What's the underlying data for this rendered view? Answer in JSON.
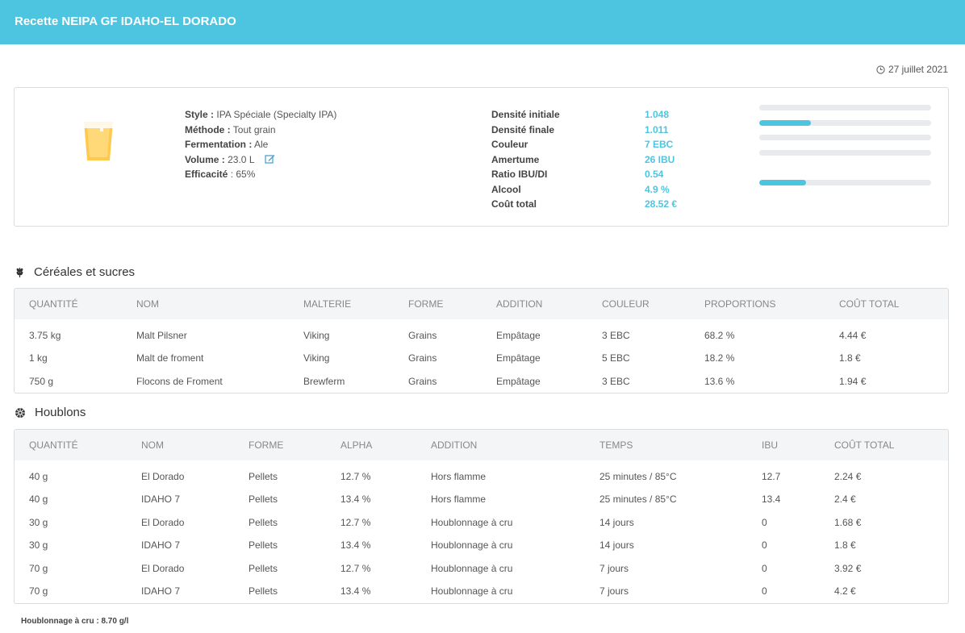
{
  "header": {
    "title": "Recette NEIPA GF IDAHO-EL DORADO"
  },
  "date": "27 juillet 2021",
  "specs": [
    {
      "label": "Style :",
      "value": "IPA Spéciale (Specialty IPA)"
    },
    {
      "label": "Méthode :",
      "value": "Tout grain"
    },
    {
      "label": "Fermentation :",
      "value": "Ale"
    },
    {
      "label": "Volume :",
      "value": "23.0 L"
    },
    {
      "label": "Efficacité",
      "value": ": 65%"
    }
  ],
  "stats": [
    {
      "label": "Densité initiale",
      "value": "1.048",
      "level": 0
    },
    {
      "label": "Densité finale",
      "value": "1.011",
      "level": 0.3
    },
    {
      "label": "Couleur",
      "value": "7 EBC",
      "level": 0
    },
    {
      "label": "Amertume",
      "value": "26 IBU",
      "level": 0
    },
    {
      "label": "Ratio IBU/DI",
      "value": "0.54",
      "level": null
    },
    {
      "label": "Alcool",
      "value": "4.9 %",
      "level": 0.27
    },
    {
      "label": "Coût total",
      "value": "28.52 €",
      "level": null
    }
  ],
  "colors": {
    "accent": "#4ec5e0",
    "glass": "#ffc94d"
  },
  "cereals": {
    "title": "Céréales et sucres",
    "icon": "wheat-icon",
    "headers": [
      "QUANTITÉ",
      "NOM",
      "MALTERIE",
      "FORME",
      "ADDITION",
      "COULEUR",
      "PROPORTIONS",
      "COÛT TOTAL"
    ],
    "rows": [
      [
        "3.75 kg",
        "Malt Pilsner",
        "Viking",
        "Grains",
        "Empâtage",
        "3 EBC",
        "68.2 %",
        "4.44 €"
      ],
      [
        "1 kg",
        "Malt de froment",
        "Viking",
        "Grains",
        "Empâtage",
        "5 EBC",
        "18.2 %",
        "1.8 €"
      ],
      [
        "750 g",
        "Flocons de Froment",
        "Brewferm",
        "Grains",
        "Empâtage",
        "3 EBC",
        "13.6 %",
        "1.94 €"
      ]
    ]
  },
  "hops": {
    "title": "Houblons",
    "icon": "hop-icon",
    "headers": [
      "QUANTITÉ",
      "NOM",
      "FORME",
      "ALPHA",
      "ADDITION",
      "TEMPS",
      "IBU",
      "COÛT TOTAL"
    ],
    "rows": [
      [
        "40 g",
        "El Dorado",
        "Pellets",
        "12.7 %",
        "Hors flamme",
        "25 minutes / 85°C",
        "12.7",
        "2.24 €"
      ],
      [
        "40 g",
        "IDAHO 7",
        "Pellets",
        "13.4 %",
        "Hors flamme",
        "25 minutes / 85°C",
        "13.4",
        "2.4 €"
      ],
      [
        "30 g",
        "El Dorado",
        "Pellets",
        "12.7 %",
        "Houblonnage à cru",
        "14 jours",
        "0",
        "1.68 €"
      ],
      [
        "30 g",
        "IDAHO 7",
        "Pellets",
        "13.4 %",
        "Houblonnage à cru",
        "14 jours",
        "0",
        "1.8 €"
      ],
      [
        "70 g",
        "El Dorado",
        "Pellets",
        "12.7 %",
        "Houblonnage à cru",
        "7 jours",
        "0",
        "3.92 €"
      ],
      [
        "70 g",
        "IDAHO 7",
        "Pellets",
        "13.4 %",
        "Houblonnage à cru",
        "7 jours",
        "0",
        "4.2 €"
      ]
    ]
  },
  "footnote": "Houblonnage à cru : 8.70 g/l"
}
